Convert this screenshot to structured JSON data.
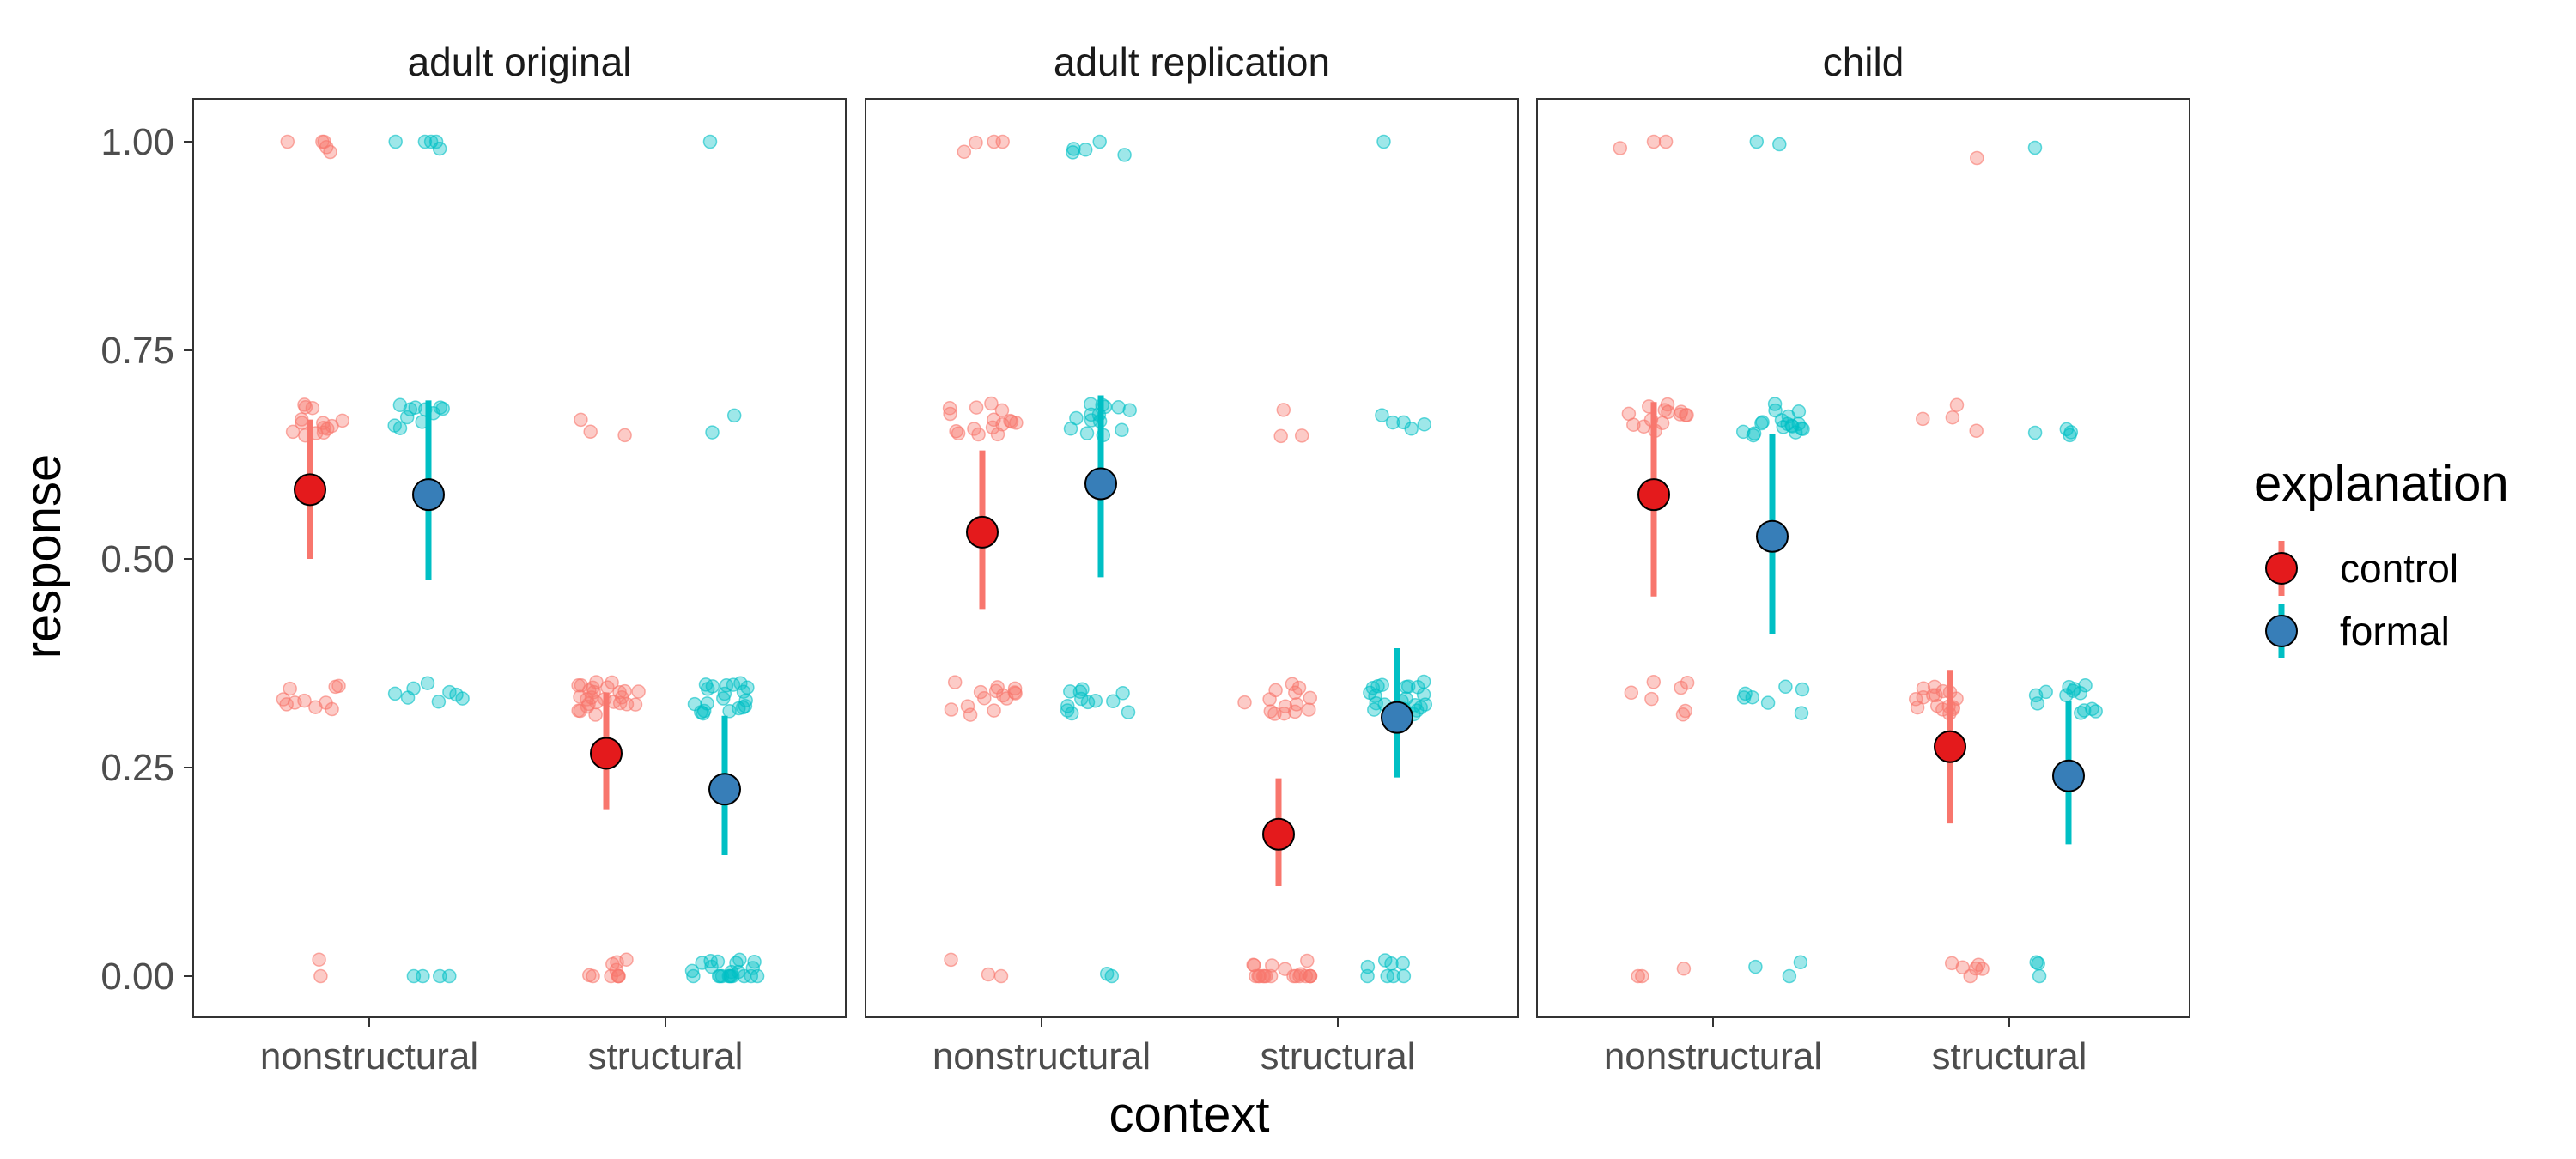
{
  "chart_data": {
    "type": "scatter",
    "xlabel": "context",
    "ylabel": "response",
    "ylim": [
      0,
      1
    ],
    "y_ticks": [
      "0.00",
      "0.25",
      "0.50",
      "0.75",
      "1.00"
    ],
    "y_tick_values": [
      0,
      0.25,
      0.5,
      0.75,
      1.0
    ],
    "categories": [
      "nonstructural",
      "structural"
    ],
    "grid": false,
    "legend": {
      "title": "explanation",
      "position": "right",
      "entries": [
        {
          "name": "control",
          "color": "#E41A1C",
          "line_color": "#F8766D"
        },
        {
          "name": "formal",
          "color": "#377EB8",
          "line_color": "#00BFC4"
        }
      ]
    },
    "panels": [
      {
        "title": "adult original",
        "summary": [
          {
            "context": "nonstructural",
            "explanation": "control",
            "mean": 0.583,
            "low": 0.5,
            "high": 0.667
          },
          {
            "context": "nonstructural",
            "explanation": "formal",
            "mean": 0.577,
            "low": 0.475,
            "high": 0.69
          },
          {
            "context": "structural",
            "explanation": "control",
            "mean": 0.267,
            "low": 0.2,
            "high": 0.34
          },
          {
            "context": "structural",
            "explanation": "formal",
            "mean": 0.224,
            "low": 0.145,
            "high": 0.312
          }
        ],
        "raw_counts": {
          "nonstructural": {
            "control": {
              "0": 2,
              "0.333": 10,
              "0.667": 14,
              "1": 5
            },
            "formal": {
              "0": 4,
              "0.333": 8,
              "0.667": 11,
              "1": 5
            }
          },
          "structural": {
            "control": {
              "0": 10,
              "0.333": 26,
              "0.667": 3,
              "1": 0
            },
            "formal": {
              "0": 22,
              "0.333": 20,
              "0.667": 2,
              "1": 1
            }
          }
        }
      },
      {
        "title": "adult replication",
        "summary": [
          {
            "context": "nonstructural",
            "explanation": "control",
            "mean": 0.532,
            "low": 0.44,
            "high": 0.63
          },
          {
            "context": "nonstructural",
            "explanation": "formal",
            "mean": 0.59,
            "low": 0.478,
            "high": 0.696
          },
          {
            "context": "structural",
            "explanation": "control",
            "mean": 0.17,
            "low": 0.108,
            "high": 0.237
          },
          {
            "context": "structural",
            "explanation": "formal",
            "mean": 0.31,
            "low": 0.238,
            "high": 0.393
          }
        ],
        "raw_counts": {
          "nonstructural": {
            "control": {
              "0": 3,
              "0.333": 14,
              "0.667": 16,
              "1": 4
            },
            "formal": {
              "0": 2,
              "0.333": 12,
              "0.667": 14,
              "1": 5
            }
          },
          "structural": {
            "control": {
              "0": 20,
              "0.333": 14,
              "0.667": 3,
              "1": 0
            },
            "formal": {
              "0": 8,
              "0.333": 22,
              "0.667": 5,
              "1": 1
            }
          }
        }
      },
      {
        "title": "child",
        "summary": [
          {
            "context": "nonstructural",
            "explanation": "control",
            "mean": 0.577,
            "low": 0.455,
            "high": 0.688
          },
          {
            "context": "nonstructural",
            "explanation": "formal",
            "mean": 0.527,
            "low": 0.41,
            "high": 0.65
          },
          {
            "context": "structural",
            "explanation": "control",
            "mean": 0.275,
            "low": 0.183,
            "high": 0.367
          },
          {
            "context": "structural",
            "explanation": "formal",
            "mean": 0.24,
            "low": 0.158,
            "high": 0.33
          }
        ],
        "raw_counts": {
          "nonstructural": {
            "control": {
              "0": 3,
              "0.333": 7,
              "0.667": 14,
              "1": 3
            },
            "formal": {
              "0": 3,
              "0.333": 7,
              "0.667": 18,
              "1": 2
            }
          },
          "structural": {
            "control": {
              "0": 6,
              "0.333": 16,
              "0.667": 4,
              "1": 1
            },
            "formal": {
              "0": 3,
              "0.333": 13,
              "0.667": 4,
              "1": 1
            }
          }
        }
      }
    ]
  }
}
